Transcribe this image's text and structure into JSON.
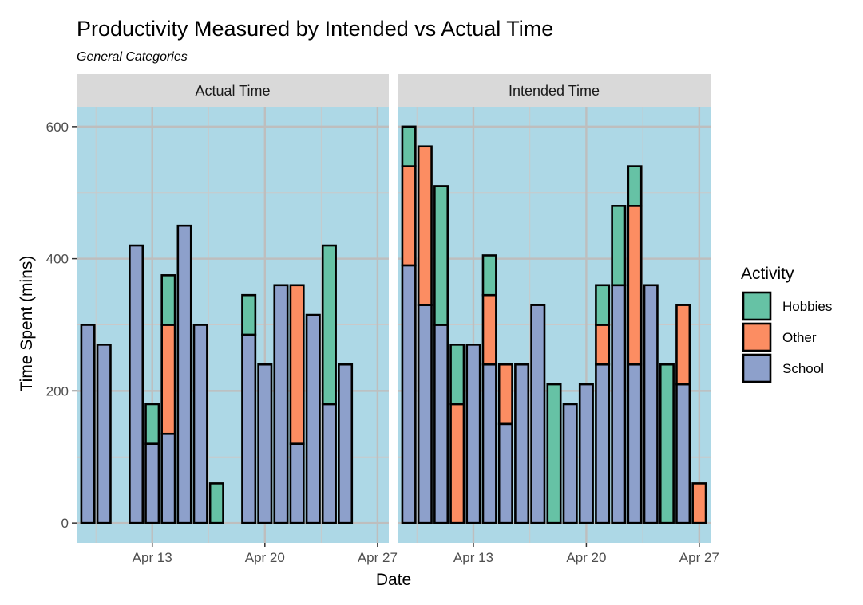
{
  "chart_data": {
    "type": "bar",
    "title": "Productivity Measured by Intended vs Actual Time",
    "subtitle": "General Categories",
    "xlabel": "Date",
    "ylabel": "Time Spent (mins)",
    "ylim": [
      -30,
      630
    ],
    "yticks": [
      0,
      200,
      400,
      600
    ],
    "xticks": [
      "Apr 13",
      "Apr 20",
      "Apr 27"
    ],
    "grid": true,
    "legend": {
      "title": "Activity",
      "position": "right",
      "entries": [
        {
          "name": "Hobbies",
          "color": "#66c2a5"
        },
        {
          "name": "Other",
          "color": "#fc8d62"
        },
        {
          "name": "School",
          "color": "#8da0cb"
        }
      ]
    },
    "panel_background": "#add8e6",
    "stack_order": [
      "School",
      "Other",
      "Hobbies"
    ],
    "facets": [
      {
        "label": "Actual Time",
        "bars": [
          {
            "date": "Apr 9",
            "School": 300,
            "Other": 0,
            "Hobbies": 0
          },
          {
            "date": "Apr 10",
            "School": 270,
            "Other": 0,
            "Hobbies": 0
          },
          {
            "date": "Apr 12",
            "School": 420,
            "Other": 0,
            "Hobbies": 0
          },
          {
            "date": "Apr 13",
            "School": 120,
            "Other": 0,
            "Hobbies": 60
          },
          {
            "date": "Apr 14",
            "School": 135,
            "Other": 165,
            "Hobbies": 75
          },
          {
            "date": "Apr 15",
            "School": 450,
            "Other": 0,
            "Hobbies": 0
          },
          {
            "date": "Apr 16",
            "School": 300,
            "Other": 0,
            "Hobbies": 0
          },
          {
            "date": "Apr 17",
            "School": 0,
            "Other": 0,
            "Hobbies": 60
          },
          {
            "date": "Apr 19",
            "School": 285,
            "Other": 0,
            "Hobbies": 60
          },
          {
            "date": "Apr 20",
            "School": 240,
            "Other": 0,
            "Hobbies": 0
          },
          {
            "date": "Apr 21",
            "School": 360,
            "Other": 0,
            "Hobbies": 0
          },
          {
            "date": "Apr 22",
            "School": 120,
            "Other": 240,
            "Hobbies": 0
          },
          {
            "date": "Apr 23",
            "School": 315,
            "Other": 0,
            "Hobbies": 0
          },
          {
            "date": "Apr 24",
            "School": 180,
            "Other": 0,
            "Hobbies": 240
          },
          {
            "date": "Apr 25",
            "School": 240,
            "Other": 0,
            "Hobbies": 0
          }
        ]
      },
      {
        "label": "Intended Time",
        "bars": [
          {
            "date": "Apr 9",
            "School": 390,
            "Other": 150,
            "Hobbies": 60
          },
          {
            "date": "Apr 10",
            "School": 330,
            "Other": 240,
            "Hobbies": 0
          },
          {
            "date": "Apr 11",
            "School": 300,
            "Other": 0,
            "Hobbies": 210
          },
          {
            "date": "Apr 12",
            "School": 0,
            "Other": 180,
            "Hobbies": 90
          },
          {
            "date": "Apr 13",
            "School": 270,
            "Other": 0,
            "Hobbies": 0
          },
          {
            "date": "Apr 14",
            "School": 240,
            "Other": 105,
            "Hobbies": 60
          },
          {
            "date": "Apr 15",
            "School": 150,
            "Other": 90,
            "Hobbies": 0
          },
          {
            "date": "Apr 16",
            "School": 240,
            "Other": 0,
            "Hobbies": 0
          },
          {
            "date": "Apr 17",
            "School": 330,
            "Other": 0,
            "Hobbies": 0
          },
          {
            "date": "Apr 18",
            "School": 0,
            "Other": 0,
            "Hobbies": 210
          },
          {
            "date": "Apr 19",
            "School": 180,
            "Other": 0,
            "Hobbies": 0
          },
          {
            "date": "Apr 20",
            "School": 210,
            "Other": 0,
            "Hobbies": 0
          },
          {
            "date": "Apr 21",
            "School": 240,
            "Other": 60,
            "Hobbies": 60
          },
          {
            "date": "Apr 22",
            "School": 360,
            "Other": 0,
            "Hobbies": 120
          },
          {
            "date": "Apr 23",
            "School": 240,
            "Other": 240,
            "Hobbies": 60
          },
          {
            "date": "Apr 24",
            "School": 360,
            "Other": 0,
            "Hobbies": 0
          },
          {
            "date": "Apr 25",
            "School": 0,
            "Other": 0,
            "Hobbies": 240
          },
          {
            "date": "Apr 26",
            "School": 210,
            "Other": 120,
            "Hobbies": 0
          },
          {
            "date": "Apr 27",
            "School": 0,
            "Other": 60,
            "Hobbies": 0
          }
        ]
      }
    ]
  }
}
